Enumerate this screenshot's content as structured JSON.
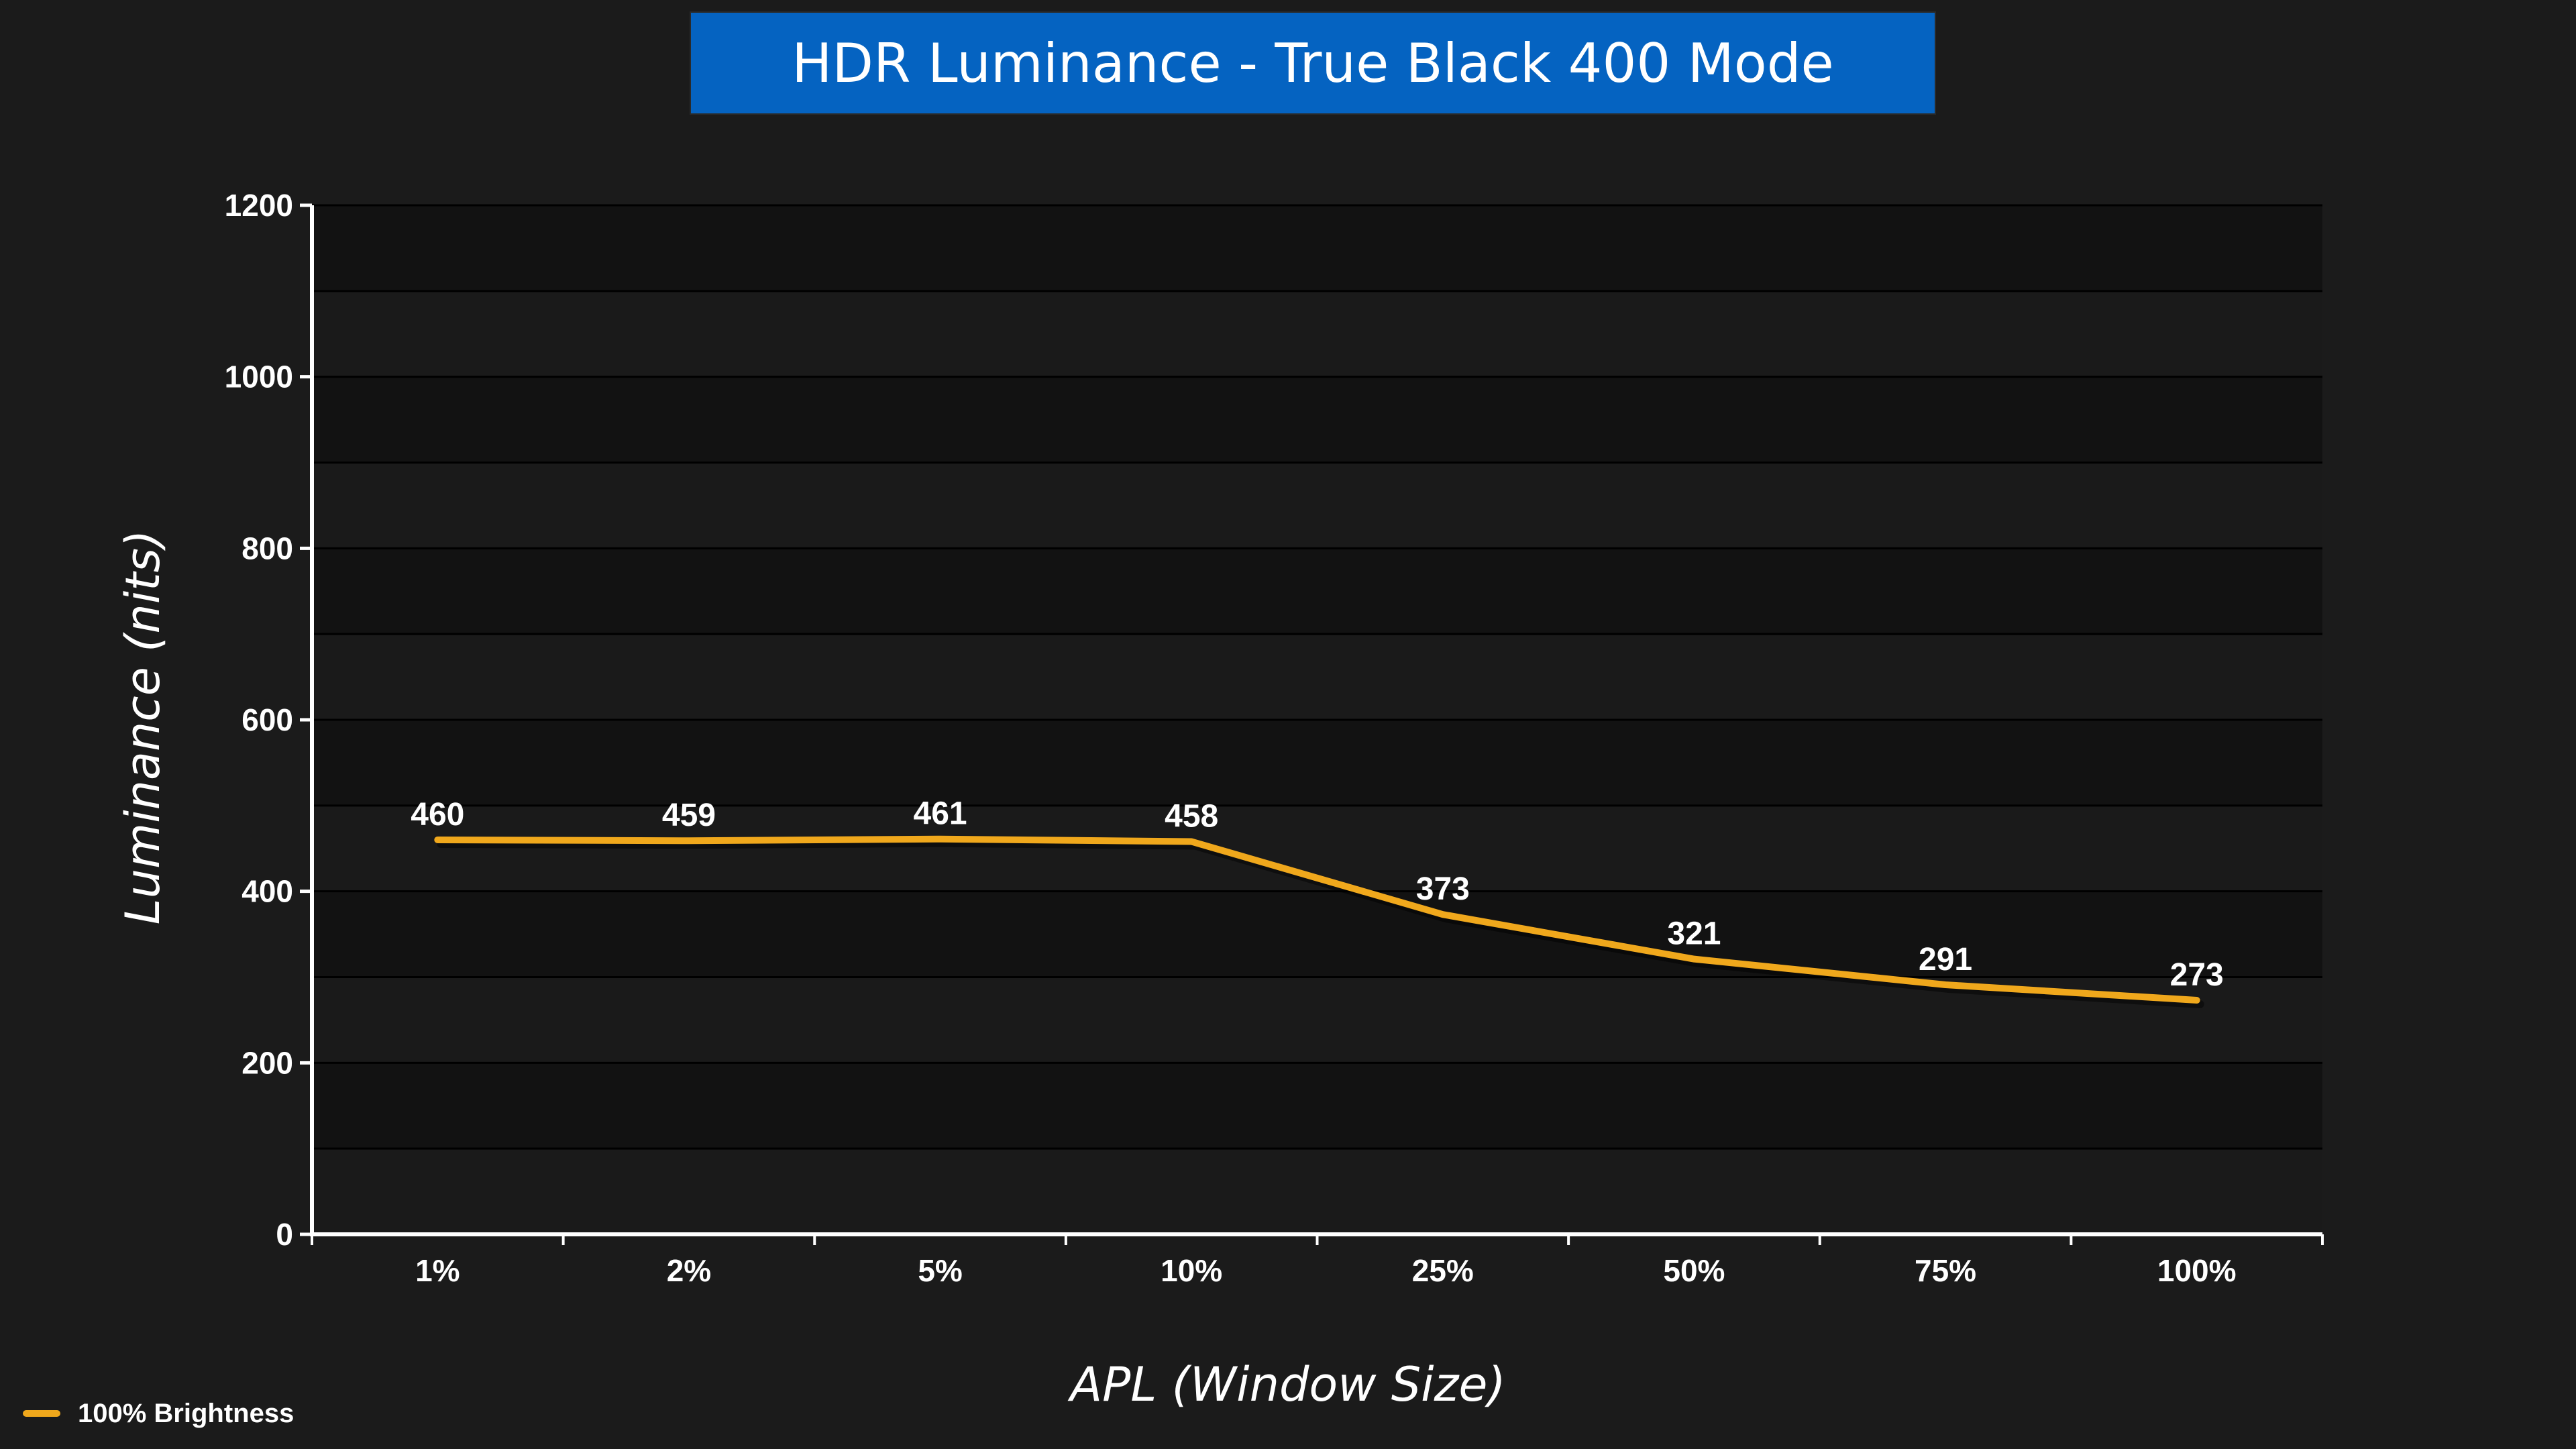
{
  "chart_data": {
    "type": "line",
    "title": "HDR Luminance - True Black 400 Mode",
    "xlabel": "APL (Window Size)",
    "ylabel": "Luminance (nits)",
    "categories": [
      "1%",
      "2%",
      "5%",
      "10%",
      "25%",
      "50%",
      "75%",
      "100%"
    ],
    "series": [
      {
        "name": "100% Brightness",
        "values": [
          460,
          459,
          461,
          458,
          373,
          321,
          291,
          273
        ],
        "color": "#f0a81c"
      }
    ],
    "ylim": [
      0,
      1200
    ],
    "yticks": [
      0,
      200,
      400,
      600,
      800,
      1000,
      1200
    ],
    "grid": true,
    "legend": "bottom-left"
  },
  "colors": {
    "background": "#1b1b1b",
    "plot_band_dark": "#121212",
    "plot_band_light": "#1a1a1a",
    "gridline": "#000000",
    "axis": "#ffffff",
    "title_box": "#0563c1"
  }
}
